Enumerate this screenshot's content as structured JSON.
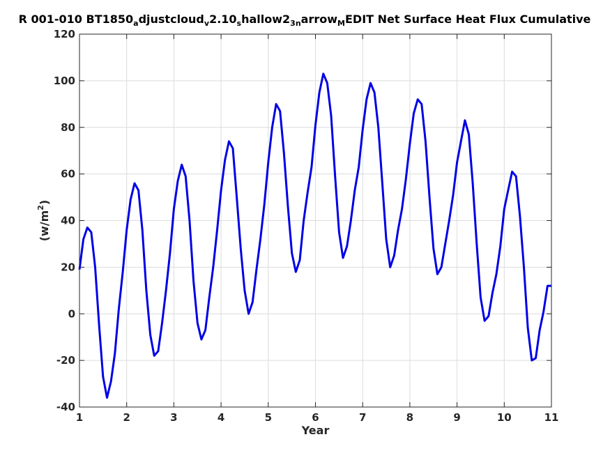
{
  "chart_data": {
    "type": "line",
    "title_parts": [
      {
        "text": "R 001-010 BT1850",
        "style": "normal"
      },
      {
        "text": "a",
        "style": "sub"
      },
      {
        "text": "djustcloud",
        "style": "normal"
      },
      {
        "text": "v",
        "style": "sub"
      },
      {
        "text": "2.10",
        "style": "normal"
      },
      {
        "text": "s",
        "style": "sub"
      },
      {
        "text": "hallow2",
        "style": "normal"
      },
      {
        "text": "3n",
        "style": "sub"
      },
      {
        "text": "arrow",
        "style": "normal"
      },
      {
        "text": "M",
        "style": "sub"
      },
      {
        "text": "EDIT Net Surface Heat Flux  Cumulative",
        "style": "normal"
      }
    ],
    "xlabel": "Year",
    "ylabel": "(w/m",
    "ylabel_sup": "2",
    "ylabel_close": ")",
    "xlim": [
      1,
      11
    ],
    "ylim": [
      -40,
      120
    ],
    "xticks": [
      1,
      2,
      3,
      4,
      5,
      6,
      7,
      8,
      9,
      10,
      11
    ],
    "yticks": [
      -40,
      -20,
      0,
      20,
      40,
      60,
      80,
      100,
      120
    ],
    "grid": true,
    "line_color": "#0000e6",
    "series": [
      {
        "x": [
          1.0,
          1.083,
          1.167,
          1.25,
          1.333,
          1.417,
          1.5,
          1.583,
          1.667,
          1.75,
          1.833,
          1.917,
          2.0,
          2.083,
          2.167,
          2.25,
          2.333,
          2.417,
          2.5,
          2.583,
          2.667,
          2.75,
          2.833,
          2.917,
          3.0,
          3.083,
          3.167,
          3.25,
          3.333,
          3.417,
          3.5,
          3.583,
          3.667,
          3.75,
          3.833,
          3.917,
          4.0,
          4.083,
          4.167,
          4.25,
          4.333,
          4.417,
          4.5,
          4.583,
          4.667,
          4.75,
          4.833,
          4.917,
          5.0,
          5.083,
          5.167,
          5.25,
          5.333,
          5.417,
          5.5,
          5.583,
          5.667,
          5.75,
          5.833,
          5.917,
          6.0,
          6.083,
          6.167,
          6.25,
          6.333,
          6.417,
          6.5,
          6.583,
          6.667,
          6.75,
          6.833,
          6.917,
          7.0,
          7.083,
          7.167,
          7.25,
          7.333,
          7.417,
          7.5,
          7.583,
          7.667,
          7.75,
          7.833,
          7.917,
          8.0,
          8.083,
          8.167,
          8.25,
          8.333,
          8.417,
          8.5,
          8.583,
          8.667,
          8.75,
          8.833,
          8.917,
          9.0,
          9.083,
          9.167,
          9.25,
          9.333,
          9.417,
          9.5,
          9.583,
          9.667,
          9.75,
          9.833,
          9.917,
          10.0,
          10.083,
          10.167,
          10.25,
          10.333,
          10.417,
          10.5,
          10.583,
          10.667,
          10.75,
          10.833,
          10.917,
          11.0
        ],
        "y": [
          19,
          32,
          37,
          35,
          20,
          -5,
          -27,
          -36,
          -29,
          -17,
          2,
          18,
          36,
          49,
          56,
          53,
          36,
          10,
          -9,
          -18,
          -16,
          -4,
          10,
          26,
          45,
          57,
          64,
          59,
          40,
          14,
          -4,
          -11,
          -7,
          7,
          20,
          36,
          53,
          66,
          74,
          71,
          50,
          28,
          10,
          0,
          5,
          19,
          32,
          47,
          65,
          80,
          90,
          87,
          69,
          46,
          26,
          18,
          23,
          40,
          52,
          63,
          81,
          95,
          103,
          99,
          85,
          59,
          35,
          24,
          29,
          40,
          53,
          63,
          79,
          92,
          99,
          95,
          80,
          56,
          32,
          20,
          25,
          36,
          45,
          58,
          73,
          86,
          92,
          90,
          74,
          50,
          28,
          17,
          20,
          30,
          40,
          51,
          65,
          74,
          83,
          77,
          56,
          30,
          7,
          -3,
          -1,
          9,
          17,
          29,
          45,
          53,
          61,
          59,
          42,
          20,
          -6,
          -20,
          -19,
          -7,
          1,
          12,
          12
        ]
      }
    ]
  }
}
